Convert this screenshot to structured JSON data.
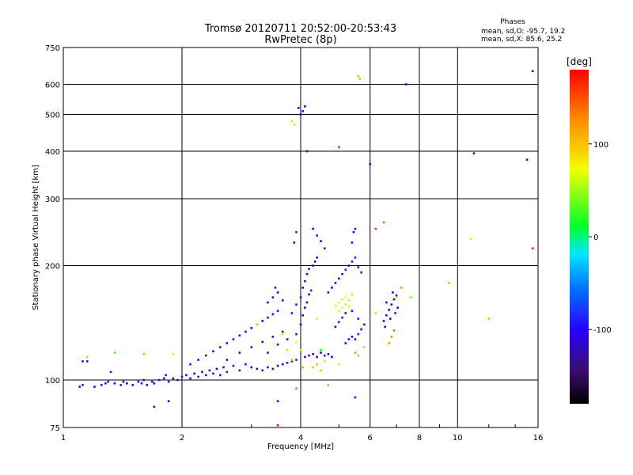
{
  "chart_data": {
    "type": "scatter",
    "title": "Tromsø 20120711 20:52:00-20:53:43",
    "subtitle": "RwPretec (8p)",
    "xlabel": "Frequency [MHz]",
    "ylabel": "Stationary phase Virtual Height [km]",
    "x_scale": "log",
    "y_scale": "log",
    "xlim": [
      1,
      16
    ],
    "ylim": [
      75,
      750
    ],
    "x_ticks": [
      1,
      2,
      4,
      6,
      8,
      10,
      16
    ],
    "x_tick_labels": [
      "1",
      "2",
      "4",
      "6",
      "8",
      "10",
      "16"
    ],
    "y_ticks": [
      75,
      100,
      200,
      300,
      400,
      500,
      600,
      750
    ],
    "y_tick_labels": [
      "75",
      "100",
      "200",
      "300",
      "400",
      "500",
      "600",
      "750"
    ],
    "grid": true,
    "phase_box": {
      "title": "Phases",
      "line_o": "mean, sd,O: -95.7, 19.2",
      "line_x": "mean, sd,X:  85.6, 25.2"
    },
    "colorbar": {
      "label": "[deg]",
      "range": [
        -180,
        180
      ],
      "ticks": [
        100,
        0,
        -100
      ],
      "tick_labels": [
        "100",
        "0",
        "-100"
      ]
    },
    "series": [
      {
        "mode": "O",
        "mean_phase": -95.7,
        "points": [
          [
            1.1,
            96,
            -100
          ],
          [
            1.12,
            97,
            -95
          ],
          [
            1.15,
            112,
            -100
          ],
          [
            1.2,
            96,
            -105
          ],
          [
            1.25,
            97,
            -95
          ],
          [
            1.28,
            98,
            -100
          ],
          [
            1.3,
            99,
            -100
          ],
          [
            1.32,
            105,
            -90
          ],
          [
            1.35,
            98,
            -110
          ],
          [
            1.4,
            97,
            -95
          ],
          [
            1.42,
            99,
            -100
          ],
          [
            1.45,
            98,
            -105
          ],
          [
            1.5,
            97,
            -100
          ],
          [
            1.55,
            99,
            -95
          ],
          [
            1.58,
            98,
            -100
          ],
          [
            1.6,
            100,
            -100
          ],
          [
            1.63,
            97,
            -110
          ],
          [
            1.68,
            99,
            -95
          ],
          [
            1.7,
            98,
            -100
          ],
          [
            1.75,
            100,
            -105
          ],
          [
            1.8,
            101,
            -100
          ],
          [
            1.82,
            103,
            -95
          ],
          [
            1.85,
            99,
            -100
          ],
          [
            1.9,
            101,
            -110
          ],
          [
            1.95,
            100,
            -100
          ],
          [
            2.0,
            102,
            -95
          ],
          [
            2.05,
            103,
            -100
          ],
          [
            2.1,
            101,
            -105
          ],
          [
            2.15,
            104,
            -100
          ],
          [
            2.2,
            102,
            -95
          ],
          [
            2.25,
            105,
            -100
          ],
          [
            2.3,
            103,
            -110
          ],
          [
            2.35,
            106,
            -100
          ],
          [
            2.4,
            104,
            -95
          ],
          [
            2.45,
            107,
            -100
          ],
          [
            2.5,
            103,
            -105
          ],
          [
            2.55,
            108,
            -100
          ],
          [
            2.6,
            105,
            -95
          ],
          [
            2.7,
            109,
            -100
          ],
          [
            2.8,
            106,
            -110
          ],
          [
            2.9,
            110,
            -100
          ],
          [
            3.0,
            108,
            -105
          ],
          [
            3.1,
            107,
            -120
          ],
          [
            3.2,
            106,
            -125
          ],
          [
            3.3,
            108,
            -120
          ],
          [
            3.4,
            107,
            -115
          ],
          [
            3.5,
            109,
            -120
          ],
          [
            3.6,
            110,
            -110
          ],
          [
            3.7,
            111,
            -100
          ],
          [
            3.8,
            112,
            -100
          ],
          [
            3.9,
            113,
            -95
          ],
          [
            2.1,
            110,
            -100
          ],
          [
            2.2,
            113,
            -100
          ],
          [
            2.3,
            116,
            -95
          ],
          [
            2.4,
            119,
            -100
          ],
          [
            2.5,
            122,
            -105
          ],
          [
            2.6,
            125,
            -100
          ],
          [
            2.7,
            128,
            -95
          ],
          [
            2.8,
            131,
            -100
          ],
          [
            2.9,
            134,
            -110
          ],
          [
            3.0,
            137,
            -100
          ],
          [
            3.1,
            140,
            -95
          ],
          [
            3.2,
            143,
            -100
          ],
          [
            3.3,
            146,
            -105
          ],
          [
            3.4,
            149,
            -100
          ],
          [
            3.5,
            152,
            -95
          ],
          [
            2.6,
            113,
            -120
          ],
          [
            2.8,
            118,
            -125
          ],
          [
            3.0,
            122,
            -120
          ],
          [
            3.2,
            126,
            -115
          ],
          [
            3.4,
            130,
            -120
          ],
          [
            3.6,
            134,
            -120
          ],
          [
            3.3,
            118,
            -115
          ],
          [
            3.5,
            124,
            -120
          ],
          [
            3.7,
            128,
            -110
          ],
          [
            3.9,
            132,
            -105
          ],
          [
            3.3,
            160,
            -110
          ],
          [
            3.4,
            165,
            -105
          ],
          [
            3.5,
            170,
            -100
          ],
          [
            3.6,
            162,
            -110
          ],
          [
            3.45,
            175,
            -100
          ],
          [
            3.8,
            150,
            -100
          ],
          [
            3.9,
            158,
            -95
          ],
          [
            4.0,
            165,
            -100
          ],
          [
            4.05,
            175,
            -95
          ],
          [
            4.1,
            182,
            -100
          ],
          [
            4.15,
            190,
            -100
          ],
          [
            4.2,
            196,
            -95
          ],
          [
            4.3,
            200,
            -100
          ],
          [
            4.35,
            205,
            -105
          ],
          [
            4.4,
            210,
            -100
          ],
          [
            4.0,
            140,
            -100
          ],
          [
            4.05,
            148,
            -95
          ],
          [
            4.1,
            155,
            -100
          ],
          [
            4.15,
            160,
            -110
          ],
          [
            4.2,
            168,
            -100
          ],
          [
            4.25,
            172,
            -95
          ],
          [
            3.85,
            230,
            -100
          ],
          [
            3.9,
            245,
            -95
          ],
          [
            4.3,
            250,
            -100
          ],
          [
            4.4,
            240,
            -95
          ],
          [
            4.5,
            232,
            -100
          ],
          [
            4.6,
            222,
            -105
          ],
          [
            4.1,
            115,
            -100
          ],
          [
            4.2,
            116,
            -95
          ],
          [
            4.3,
            117,
            -100
          ],
          [
            4.4,
            115,
            -105
          ],
          [
            4.5,
            118,
            -100
          ],
          [
            4.6,
            116,
            -95
          ],
          [
            4.7,
            117,
            -100
          ],
          [
            4.8,
            115,
            -100
          ],
          [
            4.7,
            170,
            -100
          ],
          [
            4.8,
            175,
            -95
          ],
          [
            4.9,
            180,
            -100
          ],
          [
            5.0,
            185,
            -105
          ],
          [
            5.1,
            190,
            -100
          ],
          [
            5.2,
            195,
            -95
          ],
          [
            5.3,
            200,
            -100
          ],
          [
            5.4,
            205,
            -100
          ],
          [
            5.5,
            210,
            -95
          ],
          [
            5.6,
            198,
            -100
          ],
          [
            5.7,
            192,
            -105
          ],
          [
            4.9,
            138,
            -100
          ],
          [
            5.0,
            142,
            -95
          ],
          [
            5.1,
            146,
            -100
          ],
          [
            5.2,
            150,
            -105
          ],
          [
            5.4,
            152,
            -100
          ],
          [
            5.6,
            145,
            -95
          ],
          [
            5.5,
            128,
            -100
          ],
          [
            5.6,
            132,
            -95
          ],
          [
            5.7,
            136,
            -100
          ],
          [
            5.8,
            140,
            -100
          ],
          [
            5.2,
            125,
            -110
          ],
          [
            5.3,
            128,
            -105
          ],
          [
            5.4,
            130,
            -100
          ],
          [
            6.5,
            143,
            -100
          ],
          [
            6.6,
            148,
            -95
          ],
          [
            6.7,
            153,
            -100
          ],
          [
            6.8,
            158,
            -105
          ],
          [
            6.9,
            163,
            -100
          ],
          [
            7.0,
            167,
            -95
          ],
          [
            6.55,
            138,
            -100
          ],
          [
            6.75,
            145,
            -100
          ],
          [
            6.95,
            150,
            -95
          ],
          [
            7.05,
            155,
            -100
          ],
          [
            6.6,
            160,
            -105
          ],
          [
            6.85,
            170,
            -100
          ],
          [
            4.0,
            500,
            -100
          ],
          [
            4.05,
            510,
            -95
          ],
          [
            4.1,
            525,
            -100
          ],
          [
            3.95,
            520,
            -105
          ],
          [
            4.15,
            400,
            -100
          ],
          [
            5.4,
            230,
            -100
          ],
          [
            5.5,
            250,
            -95
          ],
          [
            5.45,
            245,
            -100
          ],
          [
            7.4,
            600,
            -100
          ],
          [
            6.0,
            370,
            -95
          ],
          [
            11.0,
            395,
            -100
          ],
          [
            15.0,
            380,
            -100
          ],
          [
            5.5,
            90,
            -100
          ],
          [
            3.5,
            88,
            -100
          ],
          [
            1.12,
            112,
            -95
          ],
          [
            1.7,
            85,
            -100
          ],
          [
            1.85,
            88,
            -100
          ],
          [
            15.5,
            650,
            -100
          ]
        ]
      },
      {
        "mode": "X",
        "mean_phase": 85.6,
        "points": [
          [
            1.15,
            115,
            100
          ],
          [
            1.35,
            118,
            30
          ],
          [
            1.6,
            117,
            40
          ],
          [
            1.9,
            117,
            60
          ],
          [
            3.6,
            132,
            80
          ],
          [
            3.7,
            120,
            90
          ],
          [
            3.8,
            113,
            100
          ],
          [
            3.9,
            126,
            70
          ],
          [
            4.0,
            120,
            80
          ],
          [
            4.05,
            108,
            110
          ],
          [
            4.3,
            108,
            100
          ],
          [
            4.4,
            110,
            110
          ],
          [
            4.5,
            106,
            95
          ],
          [
            4.6,
            112,
            60
          ],
          [
            4.9,
            157,
            80
          ],
          [
            5.0,
            160,
            70
          ],
          [
            5.1,
            163,
            60
          ],
          [
            5.2,
            165,
            75
          ],
          [
            5.3,
            162,
            85
          ],
          [
            5.4,
            168,
            90
          ],
          [
            5.0,
            152,
            60
          ],
          [
            5.1,
            155,
            80
          ],
          [
            5.2,
            158,
            65
          ],
          [
            5.3,
            156,
            70
          ],
          [
            5.5,
            118,
            120
          ],
          [
            5.6,
            116,
            110
          ],
          [
            5.8,
            122,
            95
          ],
          [
            5.0,
            110,
            60
          ],
          [
            6.8,
            130,
            130
          ],
          [
            6.7,
            125,
            120
          ],
          [
            6.9,
            135,
            140
          ],
          [
            7.0,
            165,
            95
          ],
          [
            5.6,
            630,
            110
          ],
          [
            5.65,
            620,
            100
          ],
          [
            3.8,
            480,
            90
          ],
          [
            3.85,
            470,
            80
          ],
          [
            5.0,
            410,
            160
          ],
          [
            6.2,
            250,
            160
          ],
          [
            6.5,
            260,
            140
          ],
          [
            3.5,
            76,
            180
          ],
          [
            3.9,
            95,
            140
          ],
          [
            4.7,
            97,
            120
          ],
          [
            7.2,
            175,
            120
          ],
          [
            9.5,
            180,
            110
          ],
          [
            12.0,
            145,
            100
          ],
          [
            10.8,
            235,
            60
          ],
          [
            15.5,
            222,
            170
          ],
          [
            3.1,
            140,
            90
          ],
          [
            4.4,
            145,
            60
          ],
          [
            4.5,
            120,
            20
          ],
          [
            6.2,
            150,
            50
          ],
          [
            7.6,
            165,
            40
          ]
        ]
      }
    ]
  },
  "colors": {
    "grid": "#000000",
    "axis": "#000000",
    "background": "#ffffff"
  }
}
